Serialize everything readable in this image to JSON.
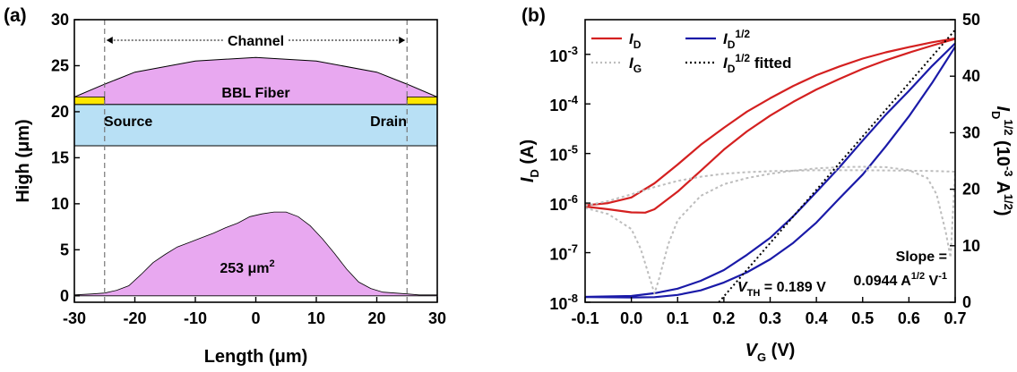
{
  "chart_data": [
    {
      "panel_label": "(a)",
      "type": "area",
      "xlabel": "Length (μm)",
      "ylabel": "High (μm)",
      "xlim": [
        -30,
        30
      ],
      "ylim": [
        -0.7,
        30
      ],
      "x_ticks": [
        "-30",
        "-20",
        "-10",
        "0",
        "10",
        "20",
        "30"
      ],
      "y_ticks": [
        "0",
        "5",
        "10",
        "15",
        "20",
        "25",
        "30"
      ],
      "annotations": {
        "channel": "Channel",
        "fiber": "BBL Fiber",
        "source": "Source",
        "drain": "Drain",
        "area": "253 μm",
        "area_sup": "2"
      },
      "electrode_lines_x": [
        -25,
        25
      ],
      "substrate": {
        "y0": 16.3,
        "y1": 20.8,
        "color": "#b8e0f5"
      },
      "electrodes": [
        {
          "name": "source",
          "x0": -30,
          "x1": -25,
          "y0": 20.8,
          "y1": 21.6,
          "color": "#ffe600"
        },
        {
          "name": "drain",
          "x0": 25,
          "x1": 30,
          "y0": 20.8,
          "y1": 21.6,
          "color": "#ffe600"
        }
      ],
      "fiber": {
        "x": [
          -30,
          -25,
          -20,
          -10,
          0,
          10,
          20,
          25,
          30
        ],
        "y": [
          21.6,
          23.0,
          24.3,
          25.5,
          25.9,
          25.5,
          24.3,
          23.0,
          21.6
        ],
        "color": "#e8a8f0"
      },
      "cross_section": {
        "color": "#e8a8f0",
        "x": [
          -30,
          -27,
          -25,
          -23,
          -21,
          -19,
          -17,
          -15,
          -13,
          -11,
          -9,
          -7,
          -5,
          -3,
          -1,
          1,
          3,
          5,
          7,
          9,
          11,
          13,
          15,
          17,
          19,
          21,
          23,
          25,
          27,
          30
        ],
        "y": [
          0.1,
          0.2,
          0.3,
          0.6,
          1.1,
          2.3,
          3.6,
          4.5,
          5.3,
          5.8,
          6.3,
          6.8,
          7.4,
          7.9,
          8.6,
          8.9,
          9.1,
          9.1,
          8.6,
          7.6,
          6.2,
          4.6,
          2.9,
          1.5,
          0.8,
          0.4,
          0.3,
          0.2,
          0.1,
          0.1
        ]
      }
    },
    {
      "panel_label": "(b)",
      "type": "line",
      "xlabel": "V",
      "xlabel_sub": "G",
      "xlabel_unit": " (V)",
      "ylabel": "I",
      "ylabel_sub": "D",
      "ylabel_unit": " (A)",
      "y2label_main": "I",
      "y2label_sub": "D",
      "y2label_sup": "1/2",
      "y2label_unit_a": " (10",
      "y2label_unit_sup1": "-3",
      "y2label_unit_b": " A",
      "y2label_unit_sup2": "1/2",
      "y2label_unit_c": ")",
      "xlim": [
        -0.1,
        0.7
      ],
      "ylim_log": [
        1e-08,
        0.005
      ],
      "y2lim": [
        0,
        50
      ],
      "x_ticks": [
        "-0.1",
        "0.0",
        "0.1",
        "0.2",
        "0.3",
        "0.4",
        "0.5",
        "0.6",
        "0.7"
      ],
      "y_ticks": [
        {
          "base": "10",
          "exp": "-8"
        },
        {
          "base": "10",
          "exp": "-7"
        },
        {
          "base": "10",
          "exp": "-6"
        },
        {
          "base": "10",
          "exp": "-5"
        },
        {
          "base": "10",
          "exp": "-4"
        },
        {
          "base": "10",
          "exp": "-3"
        }
      ],
      "y2_ticks": [
        "0",
        "10",
        "20",
        "30",
        "40",
        "50"
      ],
      "legend_position": "top-left",
      "legend": [
        {
          "main": "I",
          "sub": "D",
          "sup": "",
          "tail": "",
          "color": "#d42020",
          "style": "solid"
        },
        {
          "main": "I",
          "sub": "D",
          "sup": "1/2",
          "tail": "",
          "color": "#1a1aa8",
          "style": "solid"
        },
        {
          "main": "I",
          "sub": "G",
          "sup": "",
          "tail": "",
          "color": "#bdbdbd",
          "style": "dotted"
        },
        {
          "main": "I",
          "sub": "D",
          "sup": "1/2",
          "tail": " fitted",
          "color": "#000000",
          "style": "dotted"
        }
      ],
      "annotations": {
        "slope_1": "Slope =",
        "slope_2a": "0.0944 A",
        "slope_2b": "1/2",
        "slope_2c": " V",
        "slope_2d": "-1",
        "vth_main": "V",
        "vth_sub": "TH",
        "vth_value": " = 0.189 V"
      },
      "series": [
        {
          "name": "I_D forward",
          "axis": "left",
          "color": "#d42020",
          "x": [
            -0.1,
            -0.05,
            0.0,
            0.05,
            0.1,
            0.15,
            0.2,
            0.25,
            0.3,
            0.35,
            0.4,
            0.45,
            0.5,
            0.55,
            0.6,
            0.65,
            0.7
          ],
          "y": [
            9e-07,
            1e-06,
            1.3e-06,
            2.5e-06,
            6e-06,
            1.5e-05,
            3.3e-05,
            7e-05,
            0.00013,
            0.00023,
            0.00038,
            0.00057,
            0.00082,
            0.0011,
            0.0014,
            0.00175,
            0.0021
          ]
        },
        {
          "name": "I_D reverse",
          "axis": "left",
          "color": "#d42020",
          "x": [
            -0.1,
            -0.05,
            0.0,
            0.03,
            0.05,
            0.1,
            0.15,
            0.2,
            0.25,
            0.3,
            0.35,
            0.4,
            0.45,
            0.5,
            0.55,
            0.6,
            0.65,
            0.7
          ],
          "y": [
            8.5e-07,
            7.5e-07,
            6.5e-07,
            6.4e-07,
            7.5e-07,
            1.7e-06,
            4.5e-06,
            1.2e-05,
            2.8e-05,
            5.8e-05,
            0.00011,
            0.000195,
            0.00032,
            0.00051,
            0.00076,
            0.00108,
            0.0015,
            0.00205
          ]
        },
        {
          "name": "I_D^1/2 forward",
          "axis": "right",
          "color": "#1a1aa8",
          "x": [
            -0.1,
            0.0,
            0.05,
            0.1,
            0.15,
            0.2,
            0.25,
            0.3,
            0.35,
            0.4,
            0.45,
            0.5,
            0.55,
            0.6,
            0.65,
            0.7
          ],
          "y": [
            0.95,
            1.1,
            1.6,
            2.4,
            3.8,
            5.7,
            8.4,
            11.4,
            15.2,
            19.5,
            23.9,
            28.6,
            33.2,
            37.4,
            41.8,
            45.8
          ]
        },
        {
          "name": "I_D^1/2 reverse",
          "axis": "right",
          "color": "#1a1aa8",
          "x": [
            -0.1,
            0.0,
            0.05,
            0.1,
            0.15,
            0.2,
            0.25,
            0.3,
            0.35,
            0.4,
            0.45,
            0.5,
            0.55,
            0.6,
            0.65,
            0.7
          ],
          "y": [
            0.92,
            0.85,
            0.9,
            1.3,
            2.1,
            3.5,
            5.3,
            7.6,
            10.5,
            14.1,
            18.4,
            22.6,
            27.6,
            32.9,
            38.8,
            45.2
          ]
        },
        {
          "name": "I_G forward",
          "axis": "left",
          "color": "#bdbdbd",
          "dashed": true,
          "x": [
            -0.1,
            -0.05,
            0.0,
            0.05,
            0.1,
            0.15,
            0.2,
            0.25,
            0.3,
            0.35,
            0.4,
            0.45,
            0.5,
            0.55,
            0.6,
            0.65,
            0.7
          ],
          "y": [
            8.8e-07,
            1.1e-06,
            1.5e-06,
            2.1e-06,
            2.8e-06,
            3.4e-06,
            3.9e-06,
            4.2e-06,
            4.4e-06,
            4.5e-06,
            4.6e-06,
            4.6e-06,
            4.6e-06,
            4.55e-06,
            4.5e-06,
            4.45e-06,
            4.3e-06
          ]
        },
        {
          "name": "I_G reverse",
          "axis": "left",
          "color": "#bdbdbd",
          "dashed": true,
          "x": [
            -0.1,
            -0.05,
            0.0,
            0.02,
            0.04,
            0.05,
            0.06,
            0.08,
            0.1,
            0.15,
            0.2,
            0.25,
            0.3,
            0.35,
            0.4,
            0.45,
            0.5,
            0.55,
            0.6,
            0.64,
            0.66,
            0.68,
            0.69,
            0.7
          ],
          "y": [
            8e-07,
            6e-07,
            3e-07,
            1.2e-07,
            3e-08,
            1.5e-08,
            3e-08,
            1.5e-07,
            4.5e-07,
            1.4e-06,
            2.4e-06,
            3.2e-06,
            3.9e-06,
            4.5e-06,
            5e-06,
            5.3e-06,
            5.4e-06,
            5.3e-06,
            4.6e-06,
            3.2e-06,
            1.5e-06,
            2.5e-07,
            8e-08,
            4.2e-06
          ]
        },
        {
          "name": "I_D^1/2 fitted",
          "axis": "right",
          "color": "#000000",
          "dotted": true,
          "x": [
            0.189,
            0.7
          ],
          "y": [
            0,
            48.2
          ]
        }
      ]
    }
  ]
}
